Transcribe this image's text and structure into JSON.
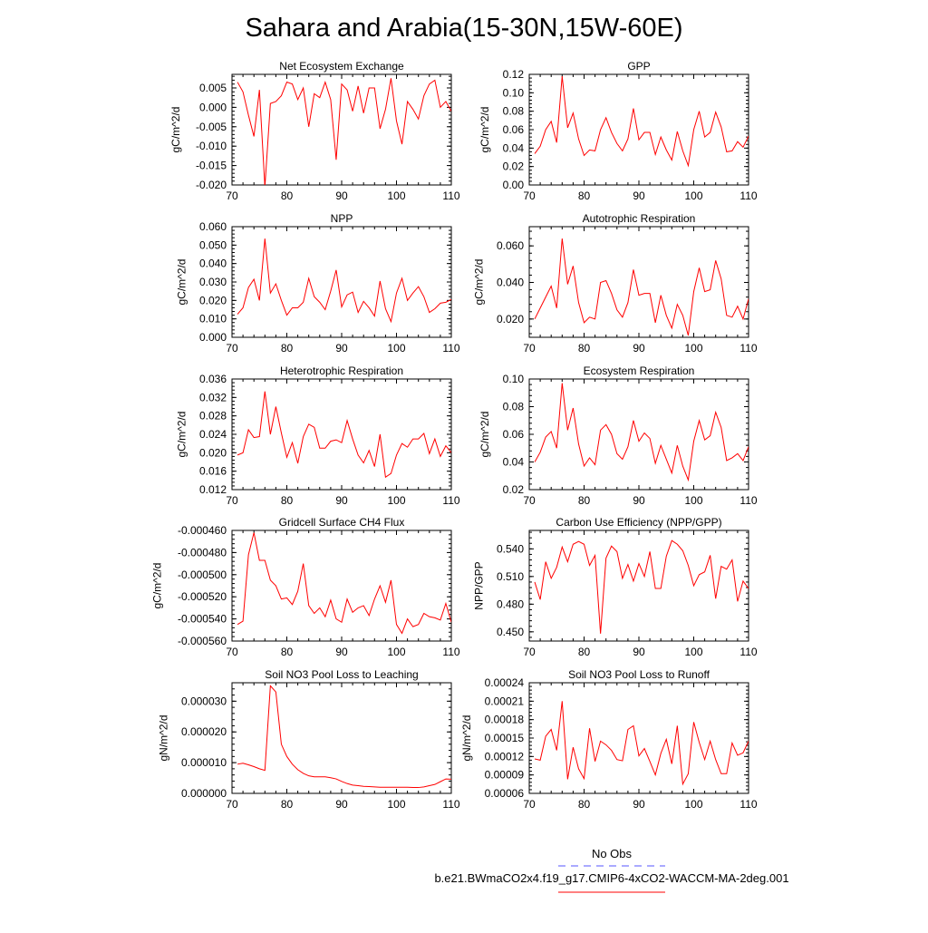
{
  "title": "Sahara and Arabia(15-30N,15W-60E)",
  "colors": {
    "model": "#ff0000",
    "obs": "#5555ff",
    "axis": "#000000"
  },
  "legend": {
    "obs_label": "No Obs",
    "model_label": "b.e21.BWmaCO2x4.f19_g17.CMIP6-4xCO2-WACCM-MA-2deg.001"
  },
  "chart_data": [
    {
      "type": "line",
      "title": "Net Ecosystem Exchange",
      "ylabel": "gC/m^2/d",
      "xlim": [
        70,
        110
      ],
      "ylim": [
        -0.02,
        0.0085
      ],
      "xticks": [
        70,
        80,
        90,
        100,
        110
      ],
      "yticks": [
        -0.02,
        -0.015,
        -0.01,
        -0.005,
        0.0,
        0.005
      ],
      "ytick_labels": [
        "-0.020",
        "-0.015",
        "-0.010",
        "-0.005",
        "0.000",
        "0.005"
      ],
      "x": [
        71,
        72,
        73,
        74,
        75,
        76,
        77,
        78,
        79,
        80,
        81,
        82,
        83,
        84,
        85,
        86,
        87,
        88,
        89,
        90,
        91,
        92,
        93,
        94,
        95,
        96,
        97,
        98,
        99,
        100,
        101,
        102,
        103,
        104,
        105,
        106,
        107,
        108,
        109,
        110
      ],
      "values": [
        0.0065,
        0.004,
        -0.002,
        -0.0075,
        0.0045,
        -0.0205,
        0.001,
        0.0015,
        0.003,
        0.0065,
        0.006,
        0.002,
        0.005,
        -0.005,
        0.0035,
        0.0025,
        0.0065,
        0.002,
        -0.0135,
        0.006,
        0.0045,
        -0.001,
        0.0055,
        -0.0015,
        0.005,
        0.005,
        -0.0055,
        -0.0005,
        0.0075,
        -0.0035,
        -0.0095,
        0.0015,
        -0.0005,
        -0.003,
        0.003,
        0.006,
        0.007,
        0.0,
        0.0015,
        -0.001
      ]
    },
    {
      "type": "line",
      "title": "GPP",
      "ylabel": "gC/m^2/d",
      "xlim": [
        70,
        110
      ],
      "ylim": [
        0.0,
        0.12
      ],
      "xticks": [
        70,
        80,
        90,
        100,
        110
      ],
      "yticks": [
        0.0,
        0.02,
        0.04,
        0.06,
        0.08,
        0.1,
        0.12
      ],
      "ytick_labels": [
        "0.00",
        "0.02",
        "0.04",
        "0.06",
        "0.08",
        "0.10",
        "0.12"
      ],
      "x": [
        71,
        72,
        73,
        74,
        75,
        76,
        77,
        78,
        79,
        80,
        81,
        82,
        83,
        84,
        85,
        86,
        87,
        88,
        89,
        90,
        91,
        92,
        93,
        94,
        95,
        96,
        97,
        98,
        99,
        100,
        101,
        102,
        103,
        104,
        105,
        106,
        107,
        108,
        109,
        110
      ],
      "values": [
        0.034,
        0.042,
        0.06,
        0.069,
        0.046,
        0.118,
        0.062,
        0.078,
        0.05,
        0.032,
        0.038,
        0.037,
        0.06,
        0.073,
        0.057,
        0.045,
        0.037,
        0.05,
        0.083,
        0.049,
        0.057,
        0.057,
        0.033,
        0.052,
        0.038,
        0.027,
        0.058,
        0.037,
        0.021,
        0.06,
        0.08,
        0.052,
        0.057,
        0.079,
        0.063,
        0.036,
        0.037,
        0.047,
        0.041,
        0.053
      ]
    },
    {
      "type": "line",
      "title": "NPP",
      "ylabel": "gC/m^2/d",
      "xlim": [
        70,
        110
      ],
      "ylim": [
        0.0,
        0.06
      ],
      "xticks": [
        70,
        80,
        90,
        100,
        110
      ],
      "yticks": [
        0.0,
        0.01,
        0.02,
        0.03,
        0.04,
        0.05,
        0.06
      ],
      "ytick_labels": [
        "0.000",
        "0.010",
        "0.020",
        "0.030",
        "0.040",
        "0.050",
        "0.060"
      ],
      "x": [
        71,
        72,
        73,
        74,
        75,
        76,
        77,
        78,
        79,
        80,
        81,
        82,
        83,
        84,
        85,
        86,
        87,
        88,
        89,
        90,
        91,
        92,
        93,
        94,
        95,
        96,
        97,
        98,
        99,
        100,
        101,
        102,
        103,
        104,
        105,
        106,
        107,
        108,
        109,
        110
      ],
      "values": [
        0.0125,
        0.016,
        0.027,
        0.0315,
        0.02,
        0.0535,
        0.024,
        0.029,
        0.02,
        0.012,
        0.016,
        0.016,
        0.019,
        0.032,
        0.022,
        0.019,
        0.015,
        0.025,
        0.0365,
        0.0165,
        0.023,
        0.0245,
        0.0135,
        0.0195,
        0.016,
        0.0115,
        0.0305,
        0.0155,
        0.0085,
        0.024,
        0.032,
        0.02,
        0.024,
        0.0275,
        0.022,
        0.0135,
        0.0155,
        0.0185,
        0.019,
        0.0205
      ]
    },
    {
      "type": "line",
      "title": "Autotrophic Respiration",
      "ylabel": "gC/m^2/d",
      "xlim": [
        70,
        110
      ],
      "ylim": [
        0.01,
        0.0705
      ],
      "xticks": [
        70,
        80,
        90,
        100,
        110
      ],
      "yticks": [
        0.02,
        0.04,
        0.06
      ],
      "ytick_labels": [
        "0.020",
        "0.040",
        "0.060"
      ],
      "x": [
        71,
        72,
        73,
        74,
        75,
        76,
        77,
        78,
        79,
        80,
        81,
        82,
        83,
        84,
        85,
        86,
        87,
        88,
        89,
        90,
        91,
        92,
        93,
        94,
        95,
        96,
        97,
        98,
        99,
        100,
        101,
        102,
        103,
        104,
        105,
        106,
        107,
        108,
        109,
        110
      ],
      "values": [
        0.02,
        0.026,
        0.032,
        0.038,
        0.026,
        0.064,
        0.039,
        0.049,
        0.029,
        0.018,
        0.021,
        0.02,
        0.04,
        0.041,
        0.034,
        0.025,
        0.021,
        0.029,
        0.047,
        0.033,
        0.034,
        0.034,
        0.018,
        0.033,
        0.022,
        0.015,
        0.028,
        0.022,
        0.011,
        0.035,
        0.048,
        0.035,
        0.036,
        0.052,
        0.042,
        0.022,
        0.021,
        0.027,
        0.02,
        0.031
      ]
    },
    {
      "type": "line",
      "title": "Heterotrophic Respiration",
      "ylabel": "gC/m^2/d",
      "xlim": [
        70,
        110
      ],
      "ylim": [
        0.012,
        0.036
      ],
      "xticks": [
        70,
        80,
        90,
        100,
        110
      ],
      "yticks": [
        0.012,
        0.016,
        0.02,
        0.024,
        0.028,
        0.032,
        0.036
      ],
      "ytick_labels": [
        "0.012",
        "0.016",
        "0.020",
        "0.024",
        "0.028",
        "0.032",
        "0.036"
      ],
      "x": [
        71,
        72,
        73,
        74,
        75,
        76,
        77,
        78,
        79,
        80,
        81,
        82,
        83,
        84,
        85,
        86,
        87,
        88,
        89,
        90,
        91,
        92,
        93,
        94,
        95,
        96,
        97,
        98,
        99,
        100,
        101,
        102,
        103,
        104,
        105,
        106,
        107,
        108,
        109,
        110
      ],
      "values": [
        0.0195,
        0.02,
        0.025,
        0.0233,
        0.0235,
        0.0333,
        0.024,
        0.03,
        0.0243,
        0.019,
        0.0222,
        0.0177,
        0.0235,
        0.0262,
        0.0255,
        0.021,
        0.021,
        0.0225,
        0.0228,
        0.0222,
        0.027,
        0.023,
        0.0195,
        0.0178,
        0.0205,
        0.017,
        0.024,
        0.0147,
        0.0155,
        0.0195,
        0.022,
        0.0212,
        0.023,
        0.023,
        0.0242,
        0.0198,
        0.023,
        0.0192,
        0.0215,
        0.02
      ]
    },
    {
      "type": "line",
      "title": "Ecosystem Respiration",
      "ylabel": "gC/m^2/d",
      "xlim": [
        70,
        110
      ],
      "ylim": [
        0.02,
        0.1
      ],
      "xticks": [
        70,
        80,
        90,
        100,
        110
      ],
      "yticks": [
        0.02,
        0.04,
        0.06,
        0.08,
        0.1
      ],
      "ytick_labels": [
        "0.02",
        "0.04",
        "0.06",
        "0.08",
        "0.10"
      ],
      "x": [
        71,
        72,
        73,
        74,
        75,
        76,
        77,
        78,
        79,
        80,
        81,
        82,
        83,
        84,
        85,
        86,
        87,
        88,
        89,
        90,
        91,
        92,
        93,
        94,
        95,
        96,
        97,
        98,
        99,
        100,
        101,
        102,
        103,
        104,
        105,
        106,
        107,
        108,
        109,
        110
      ],
      "values": [
        0.04,
        0.047,
        0.058,
        0.062,
        0.05,
        0.097,
        0.063,
        0.079,
        0.053,
        0.037,
        0.043,
        0.038,
        0.063,
        0.067,
        0.06,
        0.046,
        0.042,
        0.051,
        0.07,
        0.055,
        0.061,
        0.057,
        0.039,
        0.052,
        0.042,
        0.032,
        0.052,
        0.037,
        0.027,
        0.055,
        0.07,
        0.056,
        0.059,
        0.076,
        0.065,
        0.041,
        0.043,
        0.046,
        0.041,
        0.051
      ]
    },
    {
      "type": "line",
      "title": "Gridcell Surface CH4 Flux",
      "ylabel": "gC/m^2/d",
      "xlim": [
        70,
        110
      ],
      "ylim": [
        -0.00056,
        -0.00046
      ],
      "xticks": [
        70,
        80,
        90,
        100,
        110
      ],
      "yticks": [
        -0.00056,
        -0.00054,
        -0.00052,
        -0.0005,
        -0.00048,
        -0.00046
      ],
      "ytick_labels": [
        "-0.000560",
        "-0.000540",
        "-0.000520",
        "-0.000500",
        "-0.000480",
        "-0.000460"
      ],
      "x": [
        71,
        72,
        73,
        74,
        75,
        76,
        77,
        78,
        79,
        80,
        81,
        82,
        83,
        84,
        85,
        86,
        87,
        88,
        89,
        90,
        91,
        92,
        93,
        94,
        95,
        96,
        97,
        98,
        99,
        100,
        101,
        102,
        103,
        104,
        105,
        106,
        107,
        108,
        109,
        110
      ],
      "values": [
        -0.000545,
        -0.000542,
        -0.000482,
        -0.000462,
        -0.000487,
        -0.000487,
        -0.000505,
        -0.00051,
        -0.000522,
        -0.000521,
        -0.000527,
        -0.000515,
        -0.00049,
        -0.000528,
        -0.000535,
        -0.00053,
        -0.000538,
        -0.000523,
        -0.00054,
        -0.000543,
        -0.000522,
        -0.000534,
        -0.00053,
        -0.000528,
        -0.000537,
        -0.000522,
        -0.00051,
        -0.000525,
        -0.000505,
        -0.000545,
        -0.000553,
        -0.00054,
        -0.000547,
        -0.000545,
        -0.000535,
        -0.000538,
        -0.000539,
        -0.000541,
        -0.000526,
        -0.000543
      ]
    },
    {
      "type": "line",
      "title": "Carbon Use Efficiency (NPP/GPP)",
      "ylabel": "NPP/GPP",
      "xlim": [
        70,
        110
      ],
      "ylim": [
        0.44,
        0.56
      ],
      "xticks": [
        70,
        80,
        90,
        100,
        110
      ],
      "yticks": [
        0.45,
        0.48,
        0.51,
        0.54
      ],
      "ytick_labels": [
        "0.450",
        "0.480",
        "0.510",
        "0.540"
      ],
      "x": [
        71,
        72,
        73,
        74,
        75,
        76,
        77,
        78,
        79,
        80,
        81,
        82,
        83,
        84,
        85,
        86,
        87,
        88,
        89,
        90,
        91,
        92,
        93,
        94,
        95,
        96,
        97,
        98,
        99,
        100,
        101,
        102,
        103,
        104,
        105,
        106,
        107,
        108,
        109,
        110
      ],
      "values": [
        0.504,
        0.485,
        0.526,
        0.508,
        0.52,
        0.542,
        0.526,
        0.545,
        0.548,
        0.545,
        0.522,
        0.533,
        0.448,
        0.53,
        0.543,
        0.537,
        0.508,
        0.523,
        0.505,
        0.524,
        0.51,
        0.537,
        0.497,
        0.497,
        0.532,
        0.549,
        0.545,
        0.538,
        0.522,
        0.5,
        0.512,
        0.515,
        0.533,
        0.486,
        0.521,
        0.518,
        0.528,
        0.483,
        0.505,
        0.497
      ]
    },
    {
      "type": "line",
      "title": "Soil NO3 Pool Loss to Leaching",
      "ylabel": "gN/m^2/d",
      "xlim": [
        70,
        110
      ],
      "ylim": [
        0.0,
        3.6e-05
      ],
      "xticks": [
        70,
        80,
        90,
        100,
        110
      ],
      "yticks": [
        0.0,
        1e-05,
        2e-05,
        3e-05
      ],
      "ytick_labels": [
        "0.000000",
        "0.000010",
        "0.000020",
        "0.000030"
      ],
      "x": [
        71,
        72,
        73,
        74,
        75,
        76,
        77,
        78,
        79,
        80,
        81,
        82,
        83,
        84,
        85,
        86,
        87,
        88,
        89,
        90,
        91,
        92,
        93,
        94,
        95,
        96,
        97,
        98,
        99,
        100,
        101,
        102,
        103,
        104,
        105,
        106,
        107,
        108,
        109,
        110
      ],
      "values": [
        9.5e-06,
        9.8e-06,
        9.3e-06,
        8.7e-06,
        8e-06,
        7.5e-06,
        3.5e-05,
        3.3e-05,
        1.6e-05,
        1.2e-05,
        9.5e-06,
        7.7e-06,
        6.5e-06,
        5.7e-06,
        5.4e-06,
        5.4e-06,
        5.4e-06,
        5.1e-06,
        4.7e-06,
        3.9e-06,
        3.2e-06,
        2.7e-06,
        2.5e-06,
        2.3e-06,
        2.2e-06,
        2.1e-06,
        2e-06,
        2e-06,
        2e-06,
        2e-06,
        2e-06,
        2e-06,
        1.9e-06,
        1.9e-06,
        2.1e-06,
        2.5e-06,
        2.9e-06,
        3.8e-06,
        4.7e-06,
        4.6e-06
      ]
    },
    {
      "type": "line",
      "title": "Soil NO3 Pool Loss to Runoff",
      "ylabel": "gN/m^2/d",
      "xlim": [
        70,
        110
      ],
      "ylim": [
        6e-05,
        0.00024
      ],
      "xticks": [
        70,
        80,
        90,
        100,
        110
      ],
      "yticks": [
        6e-05,
        9e-05,
        0.00012,
        0.00015,
        0.00018,
        0.00021,
        0.00024
      ],
      "ytick_labels": [
        "0.00006",
        "0.00009",
        "0.00012",
        "0.00015",
        "0.00018",
        "0.00021",
        "0.00024"
      ],
      "x": [
        71,
        72,
        73,
        74,
        75,
        76,
        77,
        78,
        79,
        80,
        81,
        82,
        83,
        84,
        85,
        86,
        87,
        88,
        89,
        90,
        91,
        92,
        93,
        94,
        95,
        96,
        97,
        98,
        99,
        100,
        101,
        102,
        103,
        104,
        105,
        106,
        107,
        108,
        109,
        110
      ],
      "values": [
        0.000116,
        0.000114,
        0.000153,
        0.000164,
        0.00013,
        0.00021,
        8.3e-05,
        0.000135,
        0.0001,
        8.4e-05,
        0.000166,
        0.000112,
        0.000145,
        0.000139,
        0.00013,
        0.000115,
        0.000113,
        0.000164,
        0.00017,
        0.000121,
        0.000133,
        0.000112,
        9e-05,
        0.000125,
        0.000148,
        0.000108,
        0.00017,
        7.5e-05,
        9.2e-05,
        0.000176,
        0.000143,
        0.000115,
        0.000145,
        0.000115,
        9.2e-05,
        9.2e-05,
        0.000142,
        0.000122,
        0.000126,
        0.000145
      ]
    }
  ]
}
